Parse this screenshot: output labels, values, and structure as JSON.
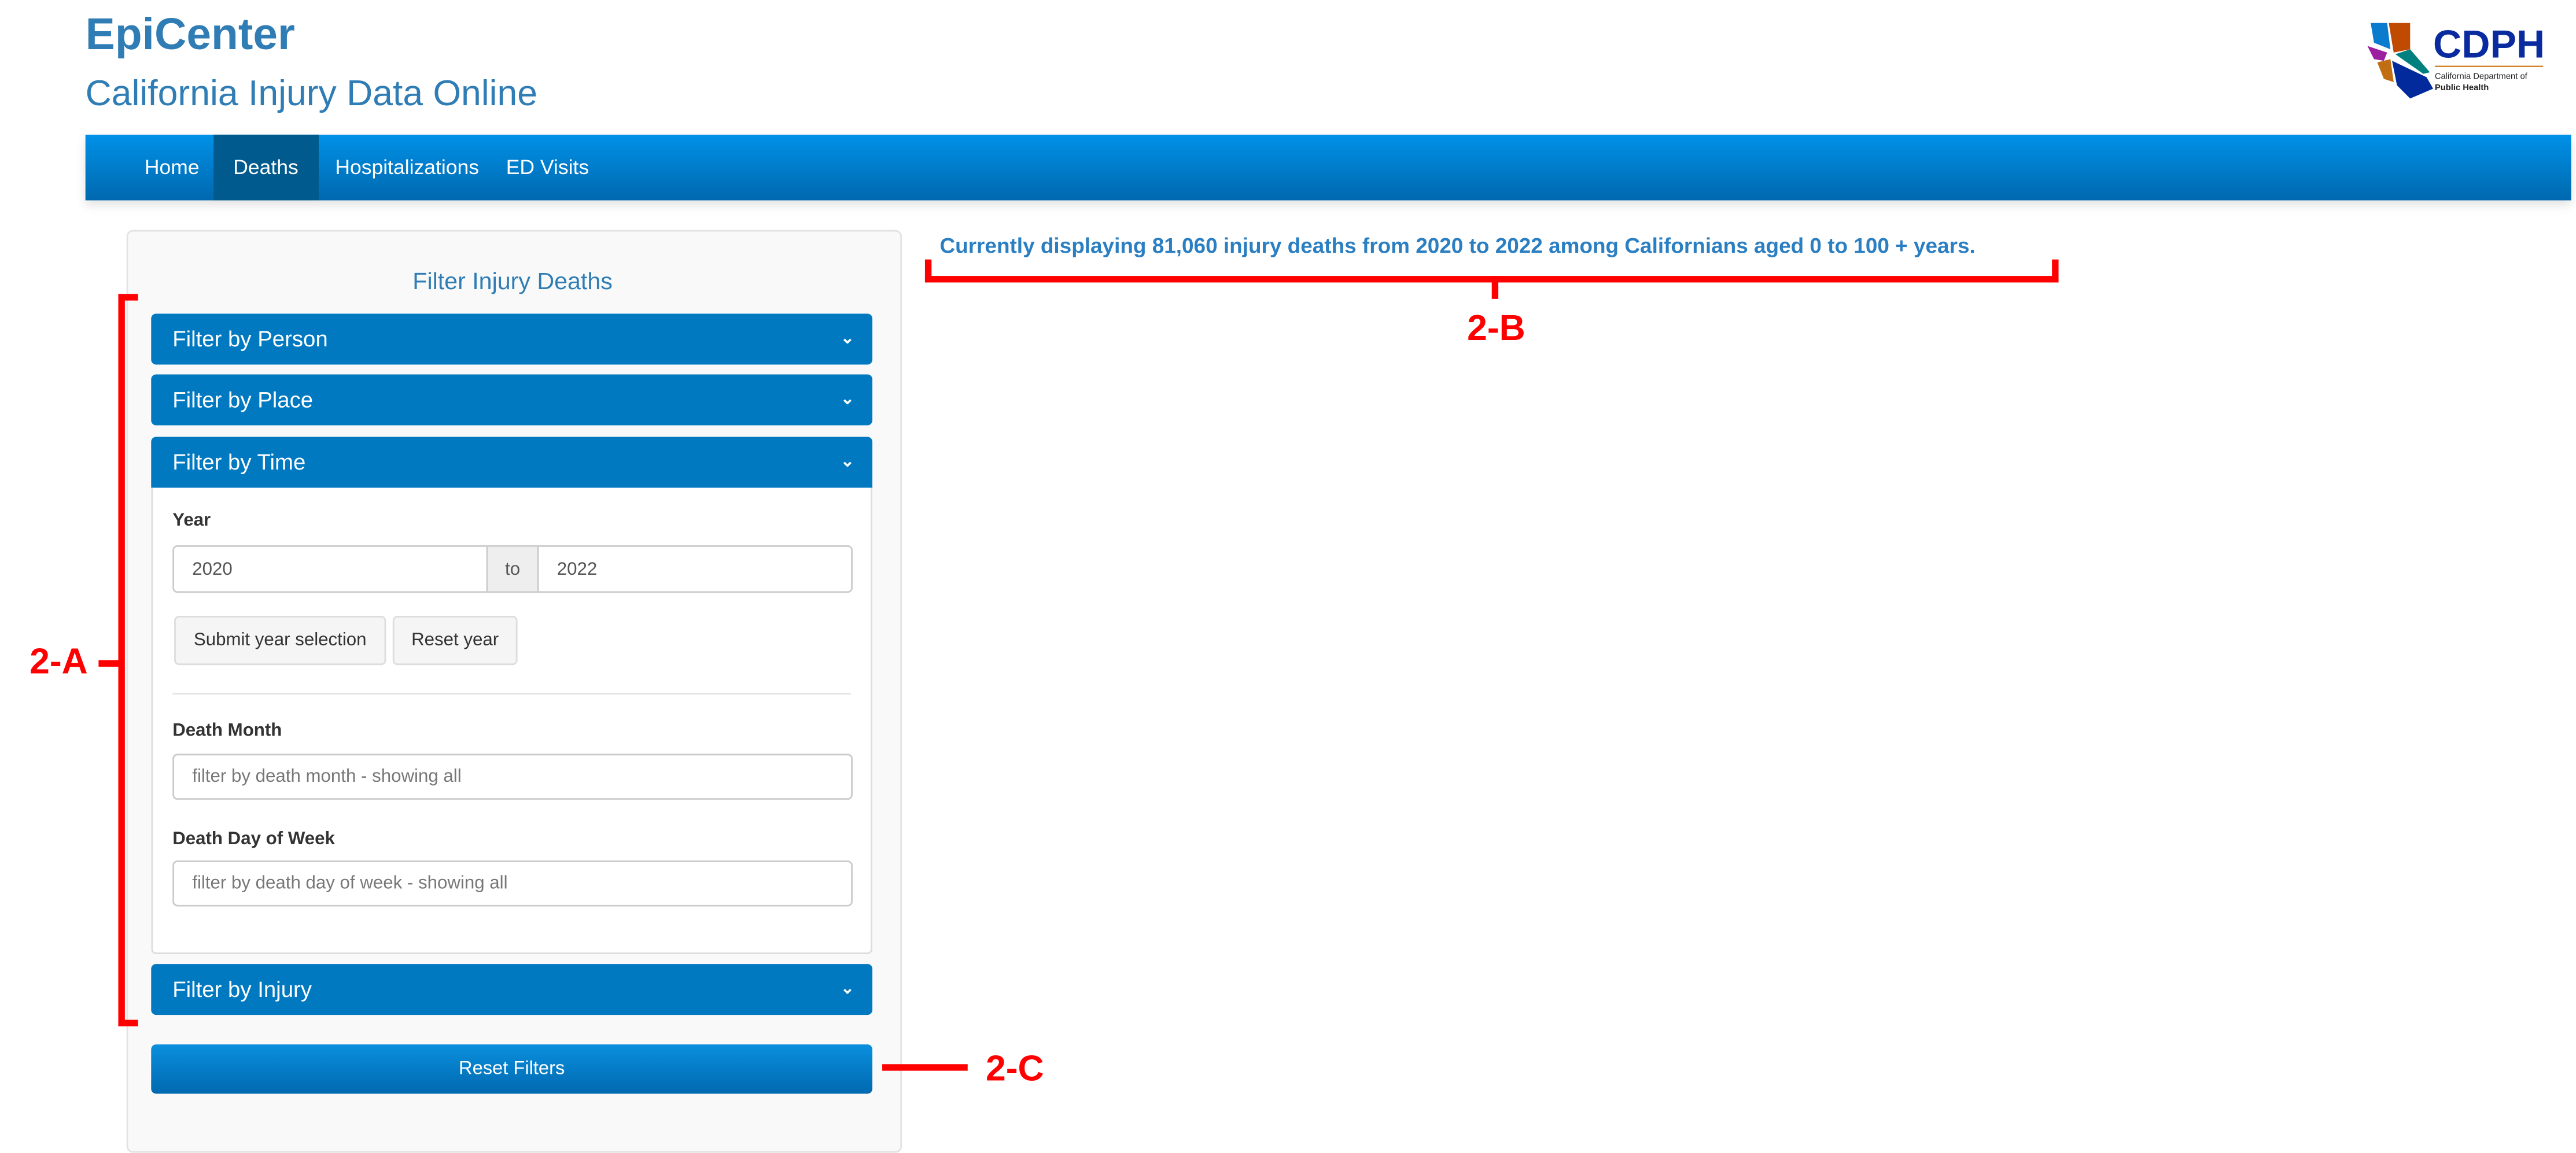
{
  "header": {
    "title": "EpiCenter",
    "subtitle": "California Injury Data Online",
    "logo": {
      "text": "CDPH",
      "caption": "California Department of Public Health"
    }
  },
  "nav": {
    "items": [
      {
        "label": "Home"
      },
      {
        "label": "Deaths",
        "active": true
      },
      {
        "label": "Hospitalizations"
      },
      {
        "label": "ED Visits"
      }
    ]
  },
  "filters": {
    "title": "Filter Injury Deaths",
    "sections": [
      {
        "label": "Filter by Person"
      },
      {
        "label": "Filter by Place"
      },
      {
        "label": "Filter by Time",
        "expanded": true
      },
      {
        "label": "Filter by Injury"
      }
    ],
    "time": {
      "year_label": "Year",
      "year_from": "2020",
      "to_label": "to",
      "year_to": "2022",
      "submit_label": "Submit year selection",
      "reset_year_label": "Reset year",
      "month_label": "Death Month",
      "month_placeholder": "filter by death month - showing all",
      "dow_label": "Death Day of Week",
      "dow_placeholder": "filter by death day of week - showing all"
    },
    "reset_label": "Reset Filters"
  },
  "status": "Currently displaying 81,060 injury deaths from 2020 to 2022 among Californians aged 0 to 100 + years.",
  "annotations": {
    "a": "2-A",
    "b": "2-B",
    "c": "2-C"
  },
  "colors": {
    "brand": "#2f7db4",
    "nav": "#0079c1",
    "active_nav": "#005a8d",
    "annotation": "#ff0000"
  }
}
